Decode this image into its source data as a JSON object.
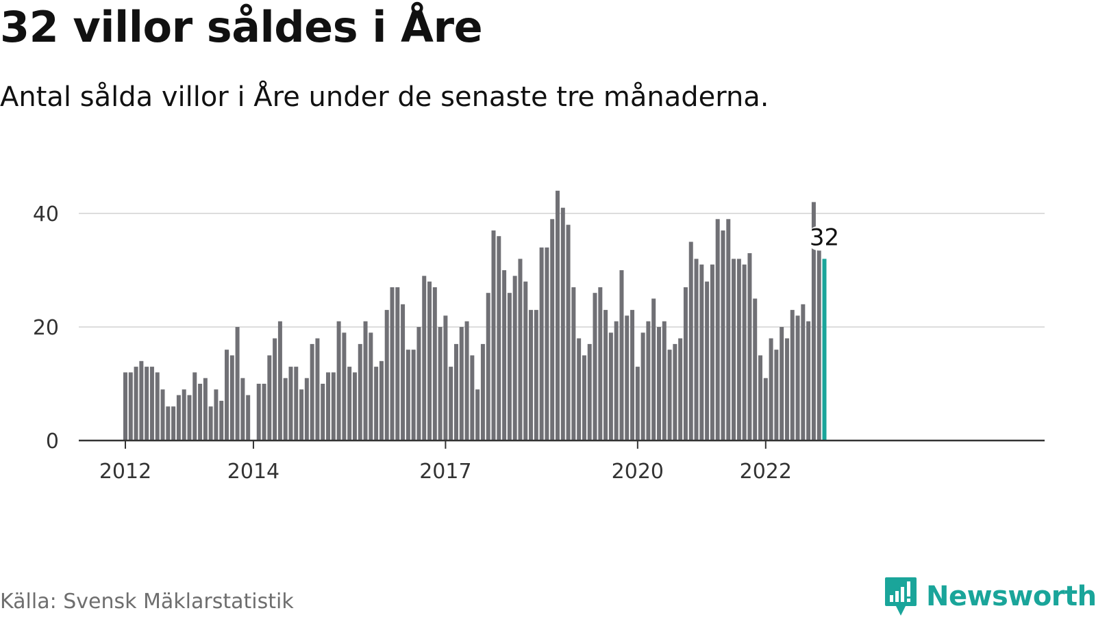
{
  "title": "32 villor såldes i Åre",
  "subtitle": "Antal sålda villor i Åre under de senaste tre månaderna.",
  "source": "Källa: Svensk Mäklarstatistik",
  "brand": {
    "name": "Newsworthy",
    "icon": "newsworthy-logo-icon",
    "color": "#1aa59a"
  },
  "colors": {
    "bar": "#707075",
    "highlight": "#1aa59a",
    "grid": "#dddddd",
    "axis": "#333333"
  },
  "chart_data": {
    "type": "bar",
    "start_year": 2012,
    "ylim": [
      0,
      45
    ],
    "yticks": [
      0,
      20,
      40
    ],
    "xticks": [
      "2012",
      "2014",
      "2017",
      "2020",
      "2022"
    ],
    "grid": true,
    "end_label": "32",
    "values": [
      12,
      12,
      13,
      14,
      13,
      13,
      12,
      9,
      6,
      6,
      8,
      9,
      8,
      12,
      10,
      11,
      6,
      9,
      7,
      16,
      15,
      20,
      11,
      8,
      null,
      10,
      10,
      15,
      18,
      21,
      11,
      13,
      13,
      9,
      11,
      17,
      18,
      10,
      12,
      12,
      21,
      19,
      13,
      12,
      17,
      21,
      19,
      13,
      14,
      23,
      27,
      27,
      24,
      16,
      16,
      20,
      29,
      28,
      27,
      20,
      22,
      13,
      17,
      20,
      21,
      15,
      9,
      17,
      26,
      37,
      36,
      30,
      26,
      29,
      32,
      28,
      23,
      23,
      34,
      34,
      39,
      44,
      41,
      38,
      27,
      18,
      15,
      17,
      26,
      27,
      23,
      19,
      21,
      30,
      22,
      23,
      13,
      19,
      21,
      25,
      20,
      21,
      16,
      17,
      18,
      27,
      35,
      32,
      31,
      28,
      31,
      39,
      37,
      39,
      32,
      32,
      31,
      33,
      25,
      15,
      11,
      18,
      16,
      20,
      18,
      23,
      22,
      24,
      21,
      42,
      34,
      32
    ]
  }
}
